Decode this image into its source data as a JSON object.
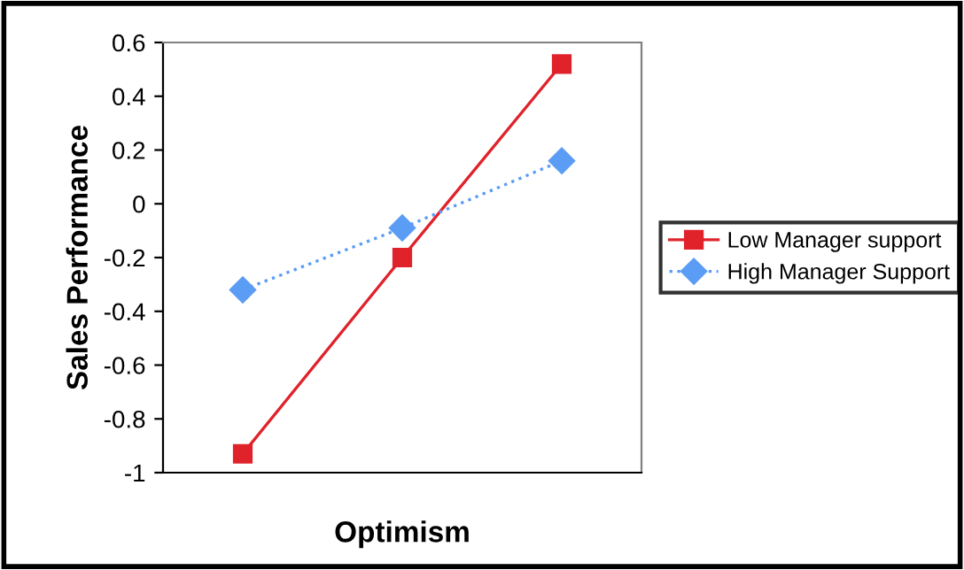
{
  "chart_data": {
    "type": "line",
    "xlabel": "Optimism",
    "ylabel": "Sales Performance",
    "categories": [
      null,
      null,
      null
    ],
    "series": [
      {
        "name": "Low Manager support",
        "color": "#e0222b",
        "values": [
          -0.93,
          -0.2,
          0.52
        ],
        "marker": "square",
        "line_style": "solid"
      },
      {
        "name": "High Manager Support",
        "color": "#5b9cf5",
        "values": [
          -0.32,
          -0.09,
          0.16
        ],
        "marker": "diamond",
        "line_style": "dotted"
      }
    ],
    "ylim": [
      -1,
      0.6
    ],
    "yticks": [
      -1,
      -0.8,
      -0.6,
      -0.4,
      -0.2,
      0,
      0.2,
      0.4,
      0.6
    ],
    "grid": false,
    "legend": "right"
  }
}
